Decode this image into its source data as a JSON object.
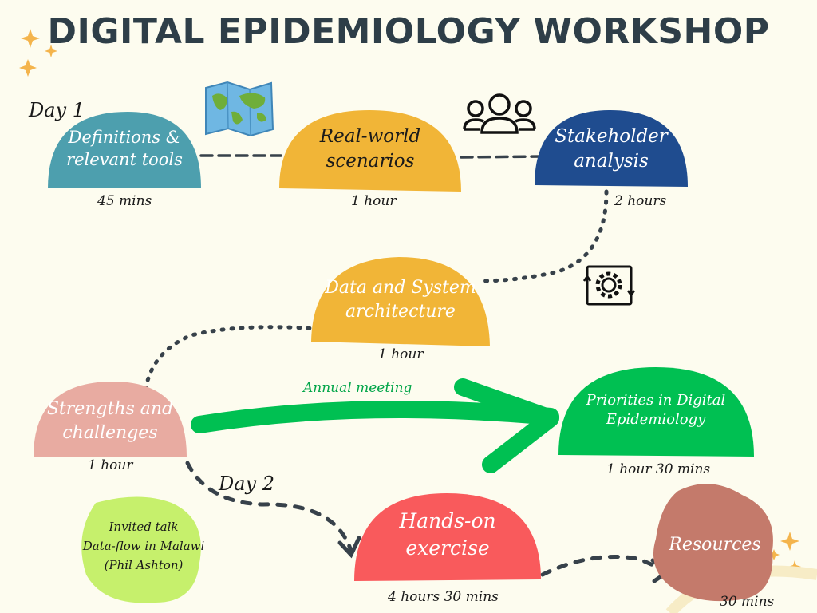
{
  "title": "DIGITAL EPIDEMIOLOGY WORKSHOP",
  "colors": {
    "teal": "#4d9fae",
    "yellow": "#f1b537",
    "navy": "#1f4c8f",
    "pink": "#e8aba1",
    "green": "#00c052",
    "red": "#f95a5c",
    "brown": "#c47a6b",
    "lime": "#c6f06c",
    "text_dark": "#2e3e48"
  },
  "icons": {
    "world_map": "world-map-icon",
    "people": "people-group-icon",
    "settings": "gear-cycle-icon",
    "sparkles": "sparkle-icon"
  },
  "day_labels": {
    "day1": "Day 1",
    "day2": "Day 2"
  },
  "nodes": {
    "definitions": {
      "line1": "Definitions &",
      "line2": "relevant tools",
      "duration": "45 mins"
    },
    "realworld": {
      "line1": "Real-world",
      "line2": "scenarios",
      "duration": "1 hour"
    },
    "stakeholder": {
      "line1": "Stakeholder",
      "line2": "analysis",
      "duration": "2 hours"
    },
    "datasystem": {
      "line1": "Data and System",
      "line2": "architecture",
      "duration": "1 hour"
    },
    "strengths": {
      "line1": "Strengths and",
      "line2": "challenges",
      "duration": "1 hour"
    },
    "priorities": {
      "line1": "Priorities in Digital",
      "line2": "Epidemiology",
      "duration": "1 hour 30 mins"
    },
    "handson": {
      "line1": "Hands-on",
      "line2": "exercise",
      "duration": "4 hours 30 mins"
    },
    "resources": {
      "line1": "Resources",
      "duration": "30 mins"
    },
    "invited": {
      "line1": "Invited talk",
      "line2": "Data-flow in Malawi",
      "line3": "(Phil Ashton)"
    }
  },
  "annual_meeting": "Annual meeting"
}
